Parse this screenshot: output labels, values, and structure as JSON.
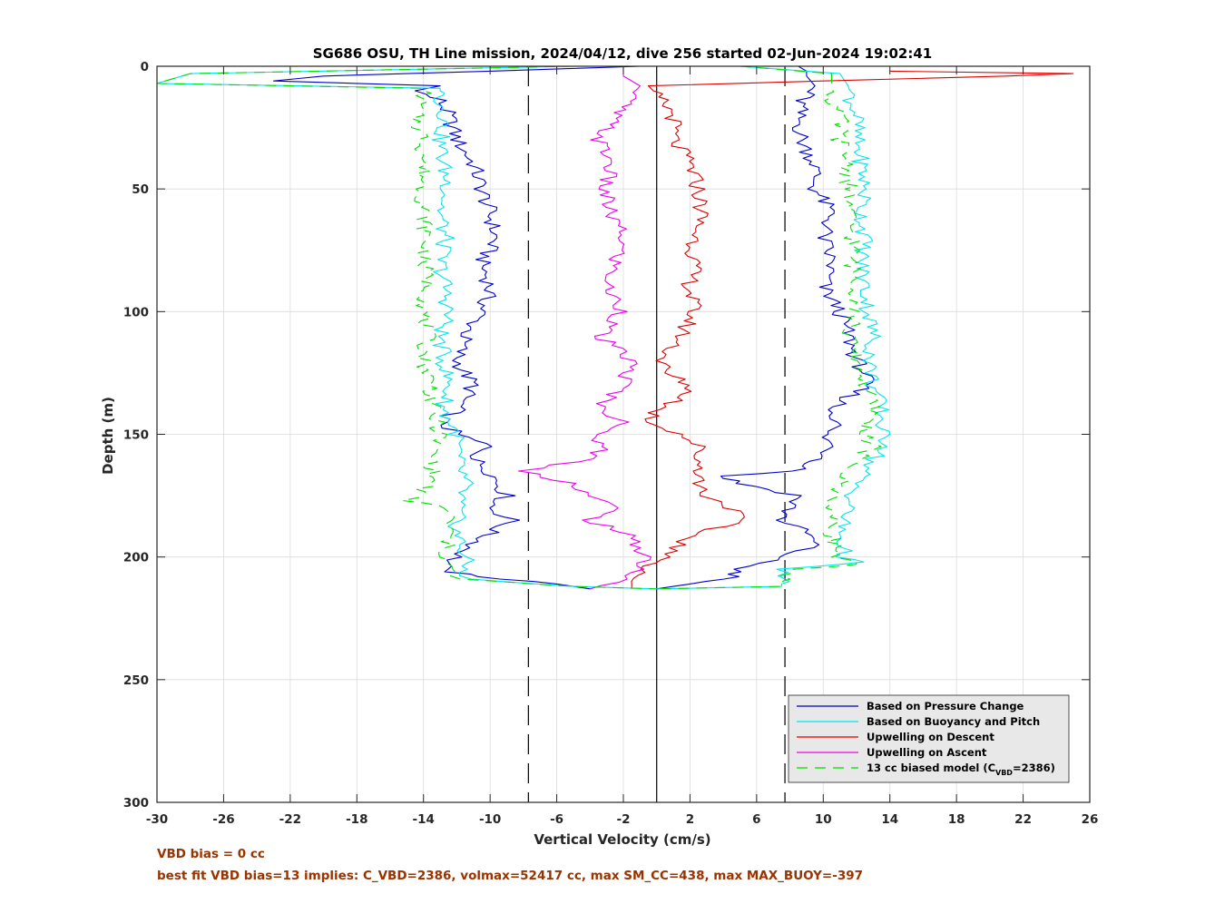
{
  "chart_data": {
    "type": "line",
    "title": "SG686 OSU, TH Line mission, 2024/04/12, dive 256 started 02-Jun-2024 19:02:41",
    "xlabel": "Vertical Velocity (cm/s)",
    "ylabel": "Depth (m)",
    "xlim": [
      -30,
      26
    ],
    "ylim": [
      0,
      300
    ],
    "y_reversed": true,
    "x_ticks": [
      "-30",
      "-26",
      "-22",
      "-18",
      "-14",
      "-10",
      "-6",
      "-2",
      "2",
      "6",
      "10",
      "14",
      "18",
      "22",
      "26"
    ],
    "y_ticks": [
      "0",
      "50",
      "100",
      "150",
      "200",
      "250",
      "300"
    ],
    "grid": true,
    "legend_position": "bottom-right",
    "reference_lines": {
      "solid_x": 0,
      "dashed_x": [
        -7.7,
        7.7
      ],
      "style_dashed_color": "#000000"
    },
    "series": [
      {
        "name": "Based on Pressure Change",
        "color": "#0000cc",
        "style": "solid",
        "branch": "descent",
        "depth": [
          0,
          2,
          4,
          6,
          8,
          10,
          14,
          20,
          30,
          40,
          50,
          60,
          70,
          80,
          90,
          100,
          110,
          120,
          130,
          140,
          145,
          150,
          155,
          160,
          165,
          170,
          175,
          180,
          185,
          190,
          195,
          200,
          205,
          208,
          210,
          213
        ],
        "velocity": [
          -1,
          -10,
          -20,
          -23,
          -13,
          -14.5,
          -13,
          -12.5,
          -12,
          -11,
          -10.5,
          -10,
          -9.7,
          -10.5,
          -10,
          -10.5,
          -11.5,
          -12,
          -11,
          -12,
          -13,
          -12,
          -10,
          -11,
          -10,
          -9.5,
          -9,
          -10,
          -8.7,
          -10,
          -11,
          -12,
          -13,
          -11,
          -7,
          -4
        ]
      },
      {
        "name": "Based on Pressure Change",
        "color": "#0000cc",
        "style": "solid",
        "branch": "ascent",
        "depth": [
          0,
          2,
          4,
          8,
          14,
          20,
          30,
          40,
          50,
          60,
          70,
          80,
          90,
          100,
          110,
          120,
          125,
          130,
          140,
          145,
          150,
          155,
          160,
          163,
          165,
          167,
          170,
          175,
          180,
          185,
          190,
          195,
          200,
          205,
          208,
          210,
          213
        ],
        "velocity": [
          8.5,
          9,
          9,
          9.5,
          8.7,
          8.5,
          8.7,
          9.5,
          9.5,
          10.5,
          10,
          10.5,
          10,
          11,
          11.5,
          12,
          12.5,
          12.5,
          10.5,
          11,
          10,
          10.5,
          10,
          9,
          8.5,
          4,
          5,
          8.5,
          8,
          7.5,
          9,
          9.5,
          7.5,
          5,
          4.5,
          3,
          0
        ]
      },
      {
        "name": "Based on Buoyancy and Pitch",
        "color": "#00e5ee",
        "style": "solid",
        "branch": "descent",
        "depth": [
          0,
          3,
          7,
          9,
          12,
          20,
          30,
          40,
          50,
          60,
          70,
          80,
          90,
          100,
          110,
          120,
          130,
          140,
          150,
          160,
          170,
          180,
          190,
          200,
          205,
          209,
          212,
          213
        ],
        "velocity": [
          -5,
          -28,
          -30,
          -13,
          -13,
          -12.7,
          -13,
          -12.8,
          -12.5,
          -13,
          -12.7,
          -13,
          -12.7,
          -12.5,
          -13,
          -12.8,
          -12.5,
          -12.8,
          -12,
          -12,
          -11.5,
          -12,
          -12,
          -11.5,
          -11.5,
          -11.5,
          -5,
          0
        ]
      },
      {
        "name": "Based on Buoyancy and Pitch",
        "color": "#00e5ee",
        "style": "solid",
        "branch": "ascent",
        "depth": [
          0,
          3,
          8,
          14,
          20,
          30,
          40,
          50,
          60,
          70,
          80,
          90,
          100,
          110,
          120,
          130,
          140,
          150,
          155,
          160,
          170,
          180,
          190,
          200,
          202,
          205,
          209,
          212,
          213
        ],
        "velocity": [
          5,
          11,
          11.5,
          11.7,
          12,
          12,
          12.3,
          12.5,
          12.3,
          12.5,
          12.3,
          12.5,
          12.7,
          13,
          12.8,
          13,
          13.5,
          13.5,
          14,
          13,
          12,
          11.5,
          11,
          11.3,
          12,
          7.5,
          7.5,
          7.5,
          0
        ]
      },
      {
        "name": "Upwelling on Descent",
        "color": "#dd0000",
        "style": "solid",
        "depth": [
          2,
          3,
          4,
          6,
          8,
          10,
          20,
          30,
          40,
          50,
          60,
          70,
          80,
          90,
          100,
          110,
          120,
          125,
          130,
          135,
          140,
          145,
          150,
          155,
          160,
          165,
          170,
          175,
          180,
          185,
          190,
          200,
          205,
          210,
          213
        ],
        "velocity": [
          14,
          25,
          21,
          10,
          -0.5,
          -0.2,
          1,
          1,
          2,
          2.5,
          2.7,
          2.3,
          2.2,
          2,
          2.2,
          1.5,
          0.3,
          0.5,
          2,
          1.7,
          0,
          -0.4,
          1.5,
          2.5,
          2.5,
          2.7,
          2.5,
          3,
          4.5,
          5,
          2.5,
          0.3,
          -0.5,
          -1.5,
          -1.5
        ]
      },
      {
        "name": "Upwelling on Ascent",
        "color": "#ee00ee",
        "style": "solid",
        "depth": [
          0,
          4,
          8,
          12,
          20,
          30,
          40,
          50,
          60,
          70,
          80,
          90,
          100,
          110,
          120,
          130,
          140,
          145,
          150,
          155,
          160,
          165,
          170,
          175,
          180,
          185,
          190,
          200,
          205,
          209,
          213
        ],
        "velocity": [
          -2,
          -2,
          -1,
          -1.5,
          -2.5,
          -3.5,
          -2.7,
          -3.2,
          -2.8,
          -2,
          -2.5,
          -3,
          -2,
          -3.5,
          -1.5,
          -2,
          -3.5,
          -1.5,
          -4,
          -3,
          -4,
          -8,
          -5,
          -4,
          -2.5,
          -4,
          -2,
          -0.5,
          -1,
          -2,
          -4
        ]
      },
      {
        "name": "13 cc biased model (C_VBD=2386)",
        "color": "#00dd00",
        "style": "dashed",
        "branch": "descent",
        "depth": [
          0,
          3,
          7,
          9,
          12,
          20,
          30,
          40,
          50,
          60,
          70,
          80,
          90,
          100,
          110,
          120,
          130,
          140,
          150,
          160,
          170,
          177,
          180,
          190,
          200,
          205,
          209,
          212,
          213
        ],
        "velocity": [
          -5,
          -28,
          -30,
          -14,
          -14,
          -14.5,
          -14,
          -14,
          -14,
          -14,
          -13.8,
          -14,
          -13.7,
          -14,
          -13.8,
          -14,
          -13.5,
          -13.5,
          -13,
          -13.5,
          -13.5,
          -15,
          -12.5,
          -12.5,
          -12.7,
          -12.5,
          -12,
          -5,
          0
        ]
      },
      {
        "name": "13 cc biased model (C_VBD=2386)",
        "color": "#00dd00",
        "style": "dashed",
        "branch": "ascent",
        "depth": [
          0,
          3,
          8,
          14,
          20,
          30,
          40,
          50,
          60,
          70,
          80,
          90,
          100,
          110,
          120,
          130,
          140,
          150,
          155,
          160,
          170,
          180,
          190,
          200,
          203,
          205,
          209,
          212,
          213
        ],
        "velocity": [
          5,
          10.5,
          10.5,
          10.5,
          11,
          11,
          11.5,
          11.5,
          11.5,
          11.8,
          11.7,
          12,
          12,
          11.5,
          12,
          12.5,
          13,
          12.5,
          13,
          12,
          11,
          10.5,
          10.5,
          11,
          12,
          8,
          7.5,
          7.5,
          0
        ]
      }
    ],
    "legend": [
      {
        "label": "Based on Pressure Change",
        "color": "#0000cc",
        "style": "solid"
      },
      {
        "label": "Based on Buoyancy and Pitch",
        "color": "#00e5ee",
        "style": "solid"
      },
      {
        "label": "Upwelling on Descent",
        "color": "#dd0000",
        "style": "solid"
      },
      {
        "label": "Upwelling on Ascent",
        "color": "#ee00ee",
        "style": "solid"
      },
      {
        "label_prefix": "13 cc biased model (C",
        "label_sub": "VBD",
        "label_suffix": "=2386)",
        "color": "#00dd00",
        "style": "dashed"
      }
    ]
  },
  "notes": {
    "vbd_bias": "VBD bias = 0 cc",
    "best_fit": "best fit VBD bias=13 implies: C_VBD=2386, volmax=52417 cc, max SM_CC=438, max MAX_BUOY=-397"
  }
}
